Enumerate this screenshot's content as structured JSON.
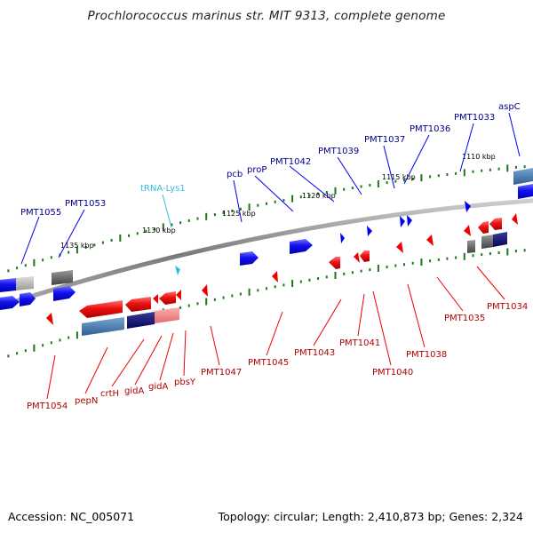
{
  "title": "Prochlorococcus marinus str. MIT 9313, complete genome",
  "footer": {
    "accession": "Accession: NC_005071",
    "summary": "Topology: circular; Length: 2,410,873 bp; Genes: 2,324"
  },
  "colors": {
    "forward_gene": "#0000ee",
    "reverse_gene": "#ee0000",
    "trna": "#33bbdd",
    "forward_label": "#00008b",
    "reverse_label": "#b00000",
    "tick_green": "#1a7a1a",
    "genome_line": "#888888"
  },
  "tick_labels": [
    "1135 kbp",
    "1130 kbp",
    "1125 kbp",
    "1120 kbp",
    "1115 kbp",
    "1110 kbp"
  ],
  "forward_labels": [
    "PMT1055",
    "PMT1053",
    "tRNA-Lys1",
    "pcb",
    "proP",
    "PMT1042",
    "PMT1039",
    "PMT1037",
    "PMT1036",
    "PMT1033",
    "aspC"
  ],
  "reverse_labels": [
    "PMT1054",
    "pepN",
    "crtH",
    "gidA",
    "gidA",
    "pbsY",
    "PMT1047",
    "PMT1045",
    "PMT1043",
    "PMT1041",
    "PMT1040",
    "PMT1038",
    "PMT1035",
    "PMT1034"
  ]
}
